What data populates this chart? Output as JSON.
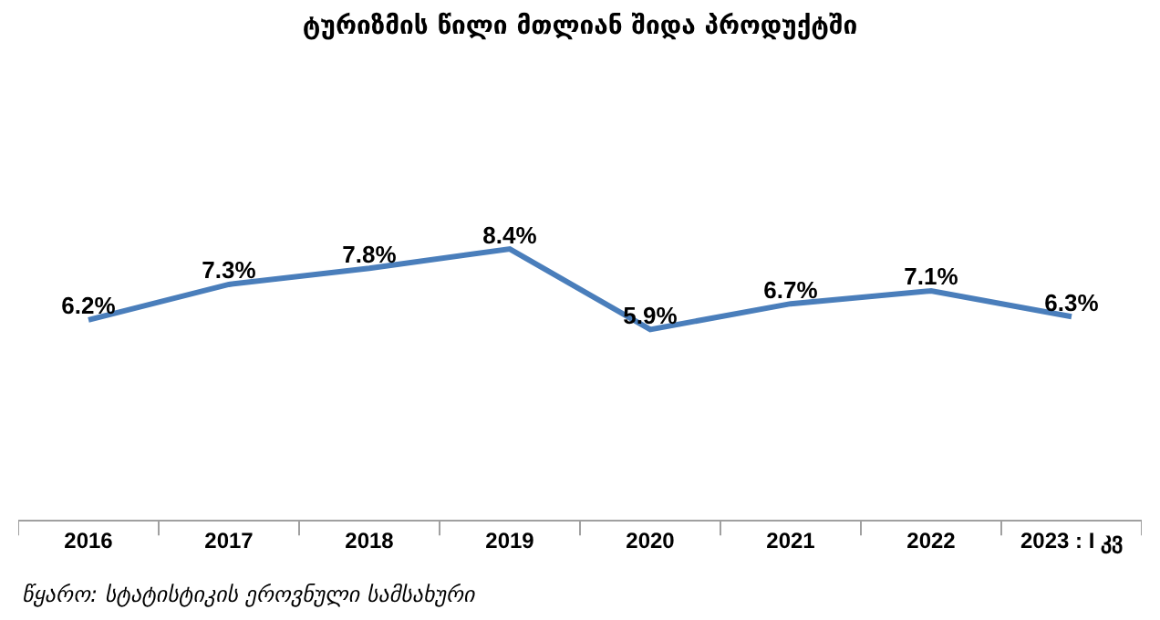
{
  "chart_data": {
    "type": "line",
    "title": "ტურიზმის წილი მთლიან შიდა პროდუქტში",
    "categories": [
      "2016",
      "2017",
      "2018",
      "2019",
      "2020",
      "2021",
      "2022",
      "2023 : I კვ"
    ],
    "series": [
      {
        "color": "#4a7ebb",
        "values": [
          6.2,
          7.3,
          7.8,
          8.4,
          5.9,
          6.7,
          7.1,
          6.3
        ],
        "value_labels": [
          "6.2%",
          "7.3%",
          "7.8%",
          "8.4%",
          "5.9%",
          "6.7%",
          "7.1%",
          "6.3%"
        ]
      }
    ],
    "tick_labels": "x",
    "grid": false,
    "legend": false,
    "marker": "none",
    "line_style": "solid",
    "annotations": [
      "წყარო: სტატისტიკის ეროვნული სამსახური"
    ]
  }
}
